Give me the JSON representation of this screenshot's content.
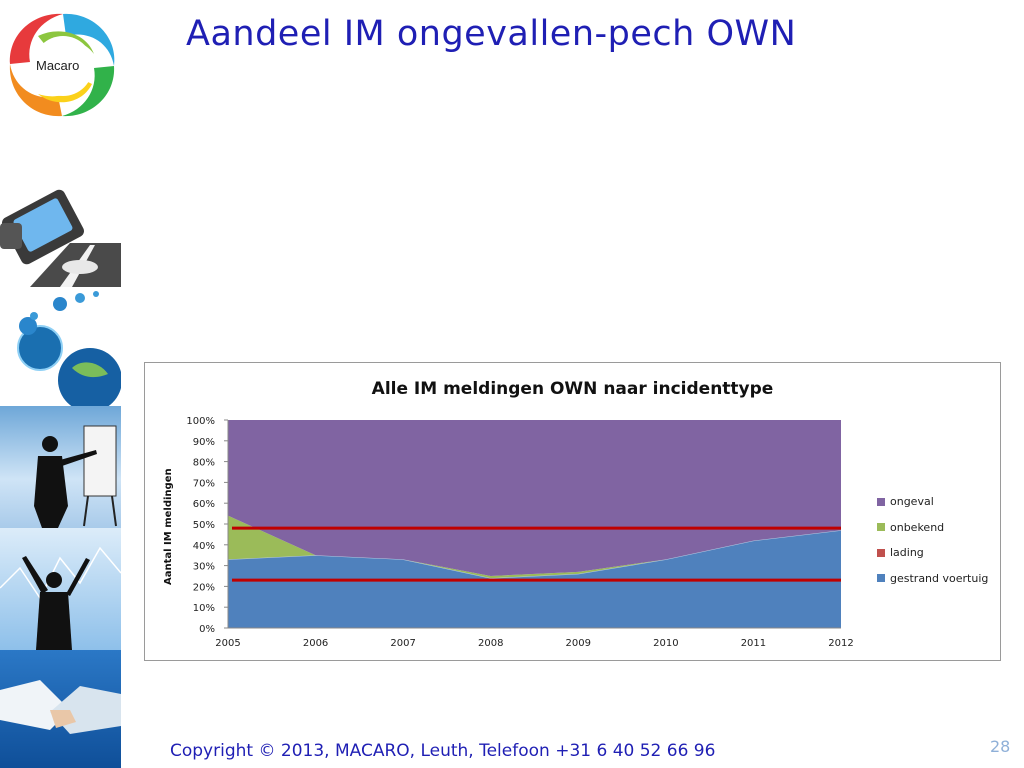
{
  "slide": {
    "title": "Aandeel IM ongevallen-pech OWN",
    "logo_text": "Macaro",
    "copyright": "Copyright © 2013, MACARO, Leuth, Telefoon +31 6 40 52 66 96",
    "page_number": "28"
  },
  "colors": {
    "title": "#1f1fb4",
    "ongeval": "#8064a2",
    "onbekend": "#9bbb59",
    "lading": "#c0504d",
    "gestrand_voertuig": "#4f81bd",
    "reference_lines": "#c00000"
  },
  "chart_data": {
    "type": "area",
    "stacked": true,
    "title": "Alle IM meldingen OWN naar incidenttype",
    "xlabel": "",
    "ylabel": "Aantal IM meldingen",
    "x": [
      "2005",
      "2006",
      "2007",
      "2008",
      "2009",
      "2010",
      "2011",
      "2012"
    ],
    "y_ticks": [
      "0%",
      "10%",
      "20%",
      "30%",
      "40%",
      "50%",
      "60%",
      "70%",
      "80%",
      "90%",
      "100%"
    ],
    "ylim": [
      0,
      100
    ],
    "series": [
      {
        "name": "gestrand voertuig",
        "values": [
          33,
          35,
          33,
          24,
          26,
          33,
          42,
          47
        ]
      },
      {
        "name": "lading",
        "values": [
          0,
          0,
          0,
          0,
          0,
          0,
          0,
          0
        ]
      },
      {
        "name": "onbekend",
        "values": [
          21,
          0,
          0,
          1,
          1,
          0,
          0,
          0
        ]
      },
      {
        "name": "ongeval",
        "values": [
          46,
          65,
          67,
          75,
          73,
          67,
          58,
          53
        ]
      }
    ],
    "legend": [
      "ongeval",
      "onbekend",
      "lading",
      "gestrand voertuig"
    ],
    "legend_position": "right",
    "reference_lines": [
      48,
      23
    ],
    "grid": false
  }
}
